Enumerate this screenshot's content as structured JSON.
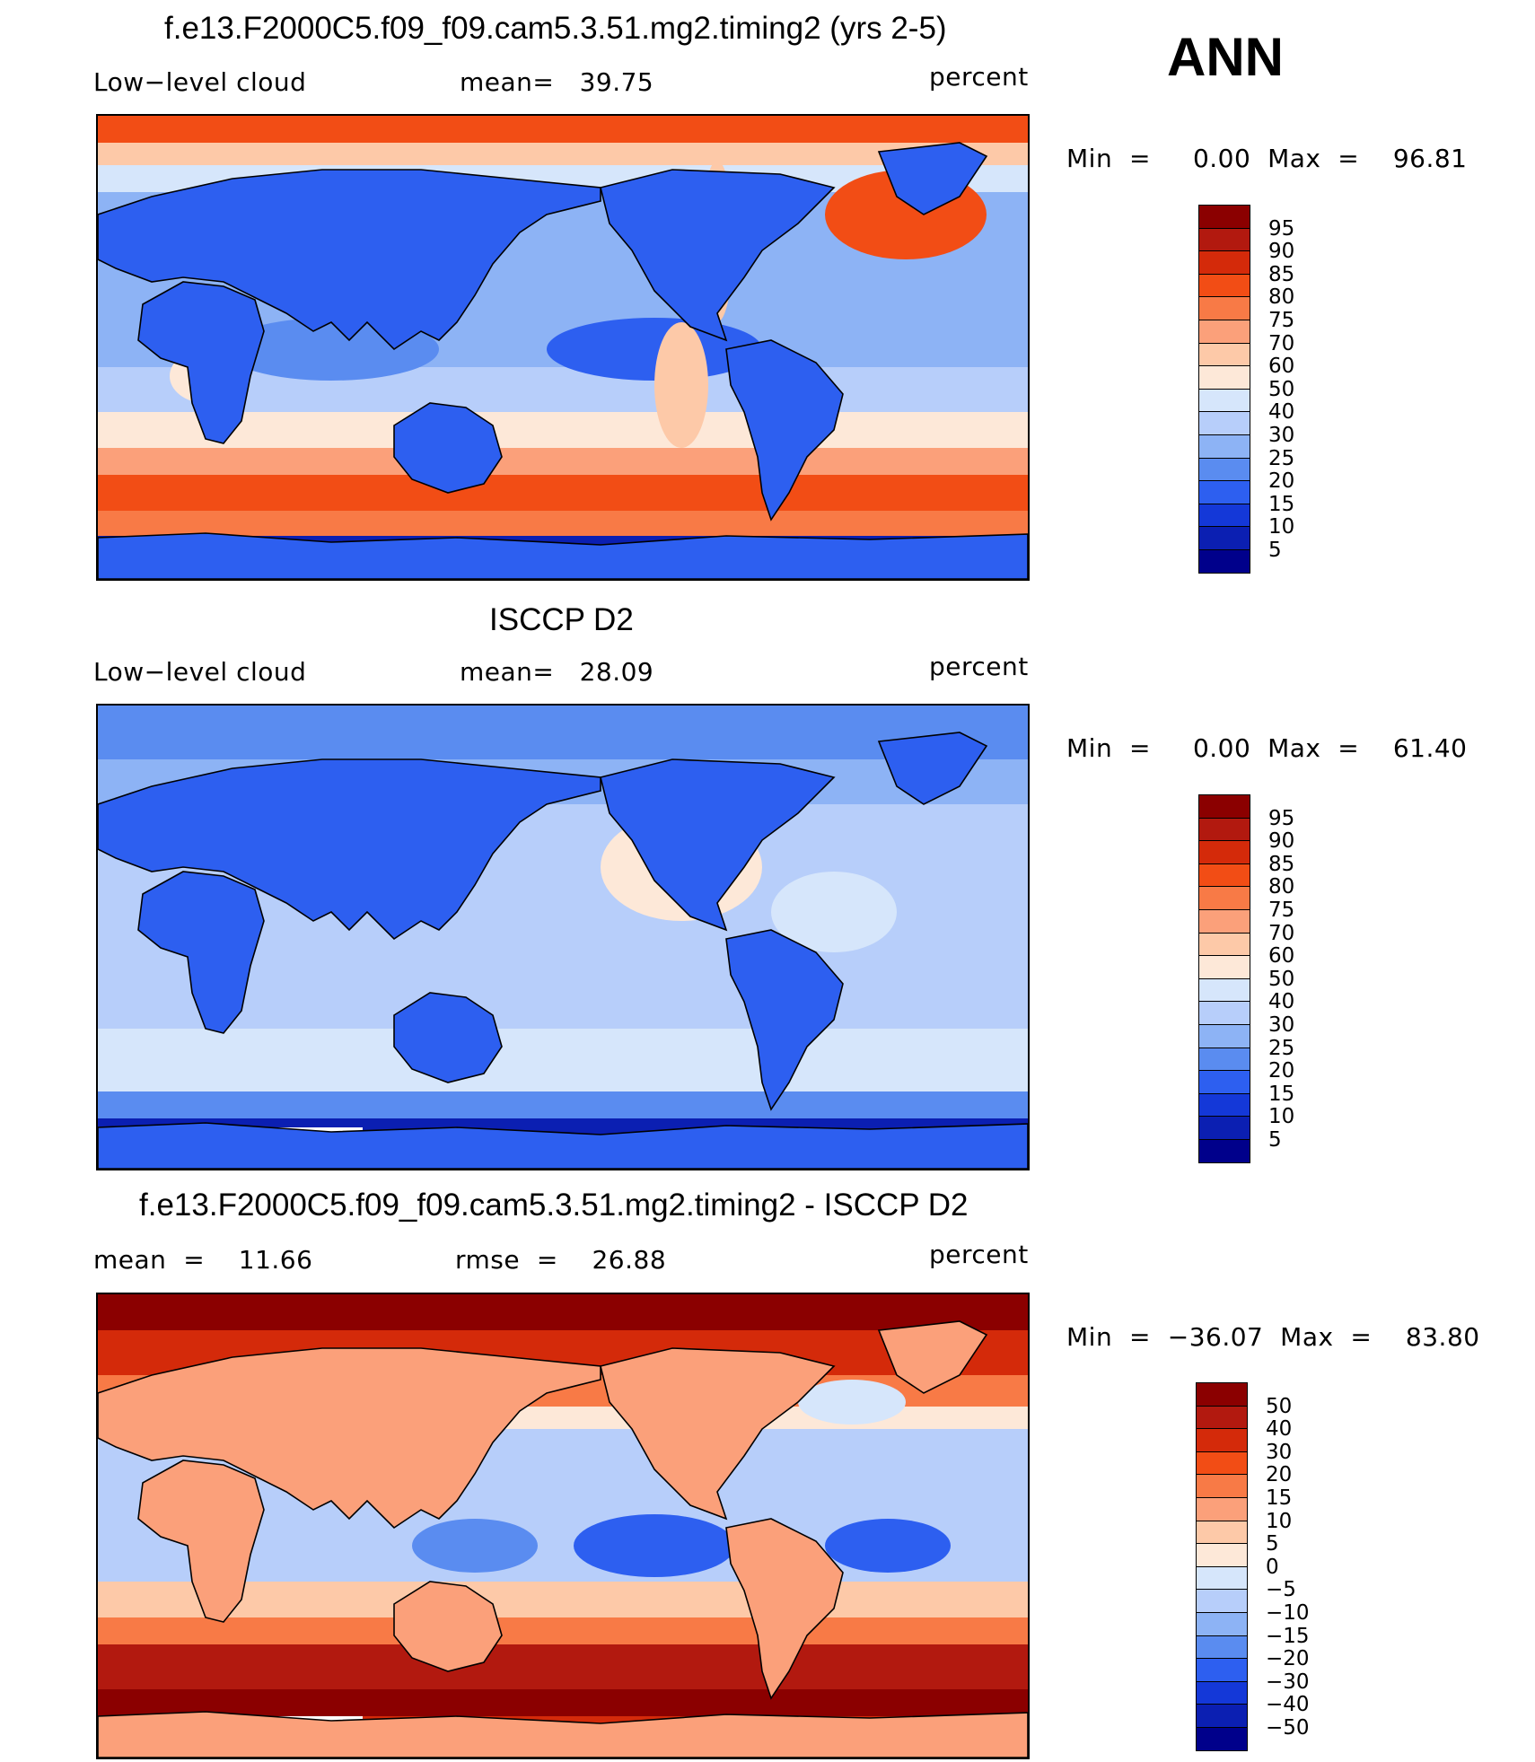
{
  "season": "ANN",
  "panels": [
    {
      "title": "f.e13.F2000C5.f09_f09.cam5.3.51.mg2.timing2 (yrs 2-5)",
      "left_label": "Low−level cloud",
      "center_label": "mean=   39.75",
      "units": "percent",
      "minmax": "Min  =     0.00  Max  =    96.81",
      "colorbar": {
        "labels": [
          "95",
          "90",
          "85",
          "80",
          "75",
          "70",
          "60",
          "50",
          "40",
          "30",
          "25",
          "20",
          "15",
          "10",
          "5"
        ],
        "colors": [
          "#8b0000",
          "#b2190f",
          "#d42a0a",
          "#f24d15",
          "#f87a46",
          "#fba07a",
          "#fdc9a8",
          "#fde8d8",
          "#d6e6fb",
          "#b7cefa",
          "#8db3f5",
          "#5a8cf0",
          "#2d5ff0",
          "#1438d8",
          "#0b1fb2",
          "#00008b"
        ]
      },
      "map_style": "model"
    },
    {
      "title": "ISCCP D2",
      "left_label": "Low−level cloud",
      "center_label": "mean=   28.09",
      "units": "percent",
      "minmax": "Min  =     0.00  Max  =    61.40",
      "colorbar": {
        "labels": [
          "95",
          "90",
          "85",
          "80",
          "75",
          "70",
          "60",
          "50",
          "40",
          "30",
          "25",
          "20",
          "15",
          "10",
          "5"
        ],
        "colors": [
          "#8b0000",
          "#b2190f",
          "#d42a0a",
          "#f24d15",
          "#f87a46",
          "#fba07a",
          "#fdc9a8",
          "#fde8d8",
          "#d6e6fb",
          "#b7cefa",
          "#8db3f5",
          "#5a8cf0",
          "#2d5ff0",
          "#1438d8",
          "#0b1fb2",
          "#00008b"
        ]
      },
      "map_style": "obs"
    },
    {
      "title": "f.e13.F2000C5.f09_f09.cam5.3.51.mg2.timing2 - ISCCP D2",
      "left_label": "mean  =    11.66",
      "center_label": "rmse  =    26.88",
      "units": "percent",
      "minmax": "Min  =  −36.07  Max  =    83.80",
      "colorbar": {
        "labels": [
          "50",
          "40",
          "30",
          "20",
          "15",
          "10",
          "5",
          "0",
          "−5",
          "−10",
          "−15",
          "−20",
          "−30",
          "−40",
          "−50"
        ],
        "colors": [
          "#8b0000",
          "#b2190f",
          "#d42a0a",
          "#f24d15",
          "#f87a46",
          "#fba07a",
          "#fdc9a8",
          "#fde8d8",
          "#d6e6fb",
          "#b7cefa",
          "#8db3f5",
          "#5a8cf0",
          "#2d5ff0",
          "#1438d8",
          "#0b1fb2",
          "#00008b"
        ]
      },
      "map_style": "diff"
    }
  ],
  "chart_data": [
    {
      "type": "heatmap",
      "title": "f.e13.F2000C5.f09_f09.cam5.3.51.mg2.timing2 (yrs 2-5)",
      "variable": "Low-level cloud",
      "units": "percent",
      "mean": 39.75,
      "min": 0.0,
      "max": 96.81,
      "levels": [
        5,
        10,
        15,
        20,
        25,
        30,
        40,
        50,
        60,
        70,
        75,
        80,
        85,
        90,
        95
      ]
    },
    {
      "type": "heatmap",
      "title": "ISCCP D2",
      "variable": "Low-level cloud",
      "units": "percent",
      "mean": 28.09,
      "min": 0.0,
      "max": 61.4,
      "levels": [
        5,
        10,
        15,
        20,
        25,
        30,
        40,
        50,
        60,
        70,
        75,
        80,
        85,
        90,
        95
      ]
    },
    {
      "type": "heatmap",
      "title": "f.e13.F2000C5.f09_f09.cam5.3.51.mg2.timing2 - ISCCP D2",
      "units": "percent",
      "mean": 11.66,
      "rmse": 26.88,
      "min": -36.07,
      "max": 83.8,
      "levels": [
        -50,
        -40,
        -30,
        -20,
        -15,
        -10,
        -5,
        0,
        5,
        10,
        15,
        20,
        30,
        40,
        50
      ]
    }
  ]
}
